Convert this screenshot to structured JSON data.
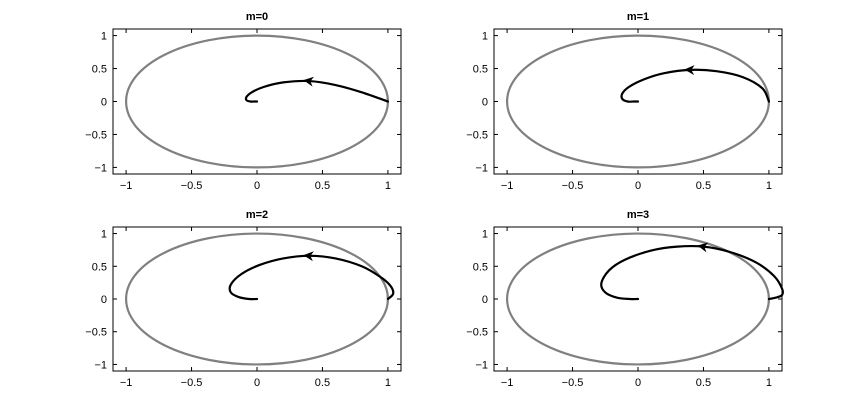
{
  "chart_data": [
    {
      "type": "line",
      "title": "m=0",
      "xlim": [
        -1.1,
        1.1
      ],
      "ylim": [
        -1.1,
        1.1
      ],
      "xticks": [
        -1,
        -0.5,
        0,
        0.5,
        1
      ],
      "xtick_labels": [
        "−1",
        "−0.5",
        "0",
        "0.5",
        "1"
      ],
      "yticks": [
        -1,
        -0.5,
        0,
        0.5,
        1
      ],
      "ytick_labels": [
        "−1",
        "−0.5",
        "0",
        "0.5",
        "1"
      ],
      "grid": false,
      "series": [
        {
          "shape": "unit circle",
          "color": "#808080"
        },
        {
          "shape": "spiral with arrow",
          "color": "#000000",
          "x": [
            1.0,
            0.8,
            0.6,
            0.4,
            0.2,
            0.05,
            -0.04,
            -0.08,
            -0.08,
            -0.05,
            -0.02,
            0.0
          ],
          "y": [
            0.0,
            0.14,
            0.25,
            0.31,
            0.29,
            0.22,
            0.14,
            0.07,
            0.02,
            0.0,
            0.0,
            0.0
          ]
        }
      ]
    },
    {
      "type": "line",
      "title": "m=1",
      "xlim": [
        -1.1,
        1.1
      ],
      "ylim": [
        -1.1,
        1.1
      ],
      "xticks": [
        -1,
        -0.5,
        0,
        0.5,
        1
      ],
      "xtick_labels": [
        "−1",
        "−0.5",
        "0",
        "0.5",
        "1"
      ],
      "yticks": [
        -1,
        -0.5,
        0,
        0.5,
        1
      ],
      "ytick_labels": [
        "−1",
        "−0.5",
        "0",
        "0.5",
        "1"
      ],
      "grid": false,
      "series": [
        {
          "shape": "unit circle",
          "color": "#808080"
        },
        {
          "shape": "spiral with arrow",
          "color": "#000000",
          "x": [
            1.0,
            0.95,
            0.8,
            0.6,
            0.4,
            0.2,
            0.05,
            -0.07,
            -0.12,
            -0.12,
            -0.08,
            -0.03,
            0.0
          ],
          "y": [
            0.0,
            0.2,
            0.37,
            0.46,
            0.48,
            0.43,
            0.34,
            0.22,
            0.12,
            0.04,
            0.0,
            0.0,
            0.0
          ]
        }
      ]
    },
    {
      "type": "line",
      "title": "m=2",
      "xlim": [
        -1.1,
        1.1
      ],
      "ylim": [
        -1.1,
        1.1
      ],
      "xticks": [
        -1,
        -0.5,
        0,
        0.5,
        1
      ],
      "xtick_labels": [
        "−1",
        "−0.5",
        "0",
        "0.5",
        "1"
      ],
      "yticks": [
        -1,
        -0.5,
        0,
        0.5,
        1
      ],
      "ytick_labels": [
        "−1",
        "−0.5",
        "0",
        "0.5",
        "1"
      ],
      "grid": false,
      "series": [
        {
          "shape": "unit circle",
          "color": "#808080"
        },
        {
          "shape": "spiral with arrow",
          "color": "#000000",
          "x": [
            1.0,
            1.04,
            1.02,
            0.94,
            0.8,
            0.6,
            0.4,
            0.2,
            0.02,
            -0.12,
            -0.2,
            -0.2,
            -0.14,
            -0.06,
            0.0
          ],
          "y": [
            0.0,
            0.08,
            0.2,
            0.34,
            0.5,
            0.62,
            0.66,
            0.62,
            0.52,
            0.38,
            0.22,
            0.1,
            0.03,
            0.0,
            0.0
          ]
        }
      ]
    },
    {
      "type": "line",
      "title": "m=3",
      "xlim": [
        -1.1,
        1.1
      ],
      "ylim": [
        -1.1,
        1.1
      ],
      "xticks": [
        -1,
        -0.5,
        0,
        0.5,
        1
      ],
      "xtick_labels": [
        "−1",
        "−0.5",
        "0",
        "0.5",
        "1"
      ],
      "yticks": [
        -1,
        -0.5,
        0,
        0.5,
        1
      ],
      "ytick_labels": [
        "−1",
        "−0.5",
        "0",
        "0.5",
        "1"
      ],
      "grid": false,
      "series": [
        {
          "shape": "unit circle",
          "color": "#808080"
        },
        {
          "shape": "spiral with arrow",
          "color": "#000000",
          "x": [
            1.0,
            1.05,
            1.1,
            1.1,
            1.04,
            0.9,
            0.7,
            0.5,
            0.3,
            0.1,
            -0.1,
            -0.22,
            -0.28,
            -0.25,
            -0.16,
            -0.06,
            0.0
          ],
          "y": [
            0.0,
            0.02,
            0.06,
            0.16,
            0.35,
            0.56,
            0.72,
            0.8,
            0.8,
            0.74,
            0.6,
            0.44,
            0.24,
            0.1,
            0.02,
            0.0,
            0.0
          ]
        }
      ]
    }
  ]
}
